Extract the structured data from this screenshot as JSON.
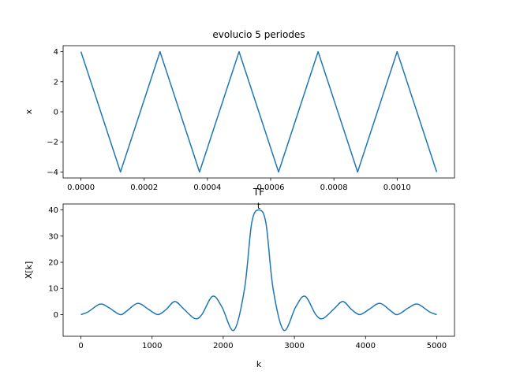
{
  "chart_data": [
    {
      "type": "line",
      "title": "evolucio 5 periodes",
      "xlabel": "t",
      "ylabel": "x",
      "xlim": [
        -5.64e-05,
        0.0011814
      ],
      "ylim": [
        -4.4,
        4.4
      ],
      "xticks": [
        "0.0000",
        "0.0002",
        "0.0004",
        "0.0006",
        "0.0008",
        "0.0010"
      ],
      "xtick_values": [
        0,
        0.0002,
        0.0004,
        0.0006,
        0.0008,
        0.001
      ],
      "yticks": [
        "4",
        "2",
        "0",
        "−2",
        "−4"
      ],
      "ytick_values": [
        4,
        2,
        0,
        -2,
        -4
      ],
      "series": [
        {
          "color": "#1f77b4",
          "x": [
            0,
            0.000125,
            0.00025,
            0.000375,
            0.0005,
            0.000625,
            0.00075,
            0.000875,
            0.001,
            0.001125
          ],
          "y": [
            4,
            -4,
            4,
            -4,
            4,
            -4,
            4,
            -4,
            4,
            -4
          ]
        }
      ]
    },
    {
      "type": "line",
      "title": "TF",
      "xlabel": "k",
      "ylabel": "X[k]",
      "xlim": [
        -250,
        5250
      ],
      "ylim": [
        -8.3,
        42.3
      ],
      "xticks": [
        "0",
        "1000",
        "2000",
        "3000",
        "4000",
        "5000"
      ],
      "xtick_values": [
        0,
        1000,
        2000,
        3000,
        4000,
        5000
      ],
      "yticks": [
        "40",
        "30",
        "20",
        "10",
        "0"
      ],
      "ytick_values": [
        40,
        30,
        20,
        10,
        0
      ],
      "series": [
        {
          "color": "#1f77b4",
          "x": [
            0,
            100,
            270,
            400,
            550,
            650,
            800,
            950,
            1080,
            1200,
            1320,
            1450,
            1600,
            1700,
            1850,
            1980,
            2150,
            2300,
            2400,
            2500,
            2600,
            2700,
            2850,
            3020,
            3150,
            3300,
            3400,
            3550,
            3680,
            3800,
            3920,
            4050,
            4200,
            4350,
            4450,
            4600,
            4730,
            4900,
            5000
          ],
          "y": [
            0,
            1,
            4,
            2.5,
            0,
            1.5,
            4.3,
            2,
            0,
            2,
            5,
            2,
            -1.5,
            0,
            7,
            3,
            -6,
            10,
            35,
            40,
            35,
            10,
            -6,
            3,
            7,
            0,
            -1.5,
            2,
            5,
            2,
            0,
            2,
            4.3,
            1.5,
            0,
            2.5,
            4,
            1,
            0
          ]
        }
      ]
    }
  ]
}
